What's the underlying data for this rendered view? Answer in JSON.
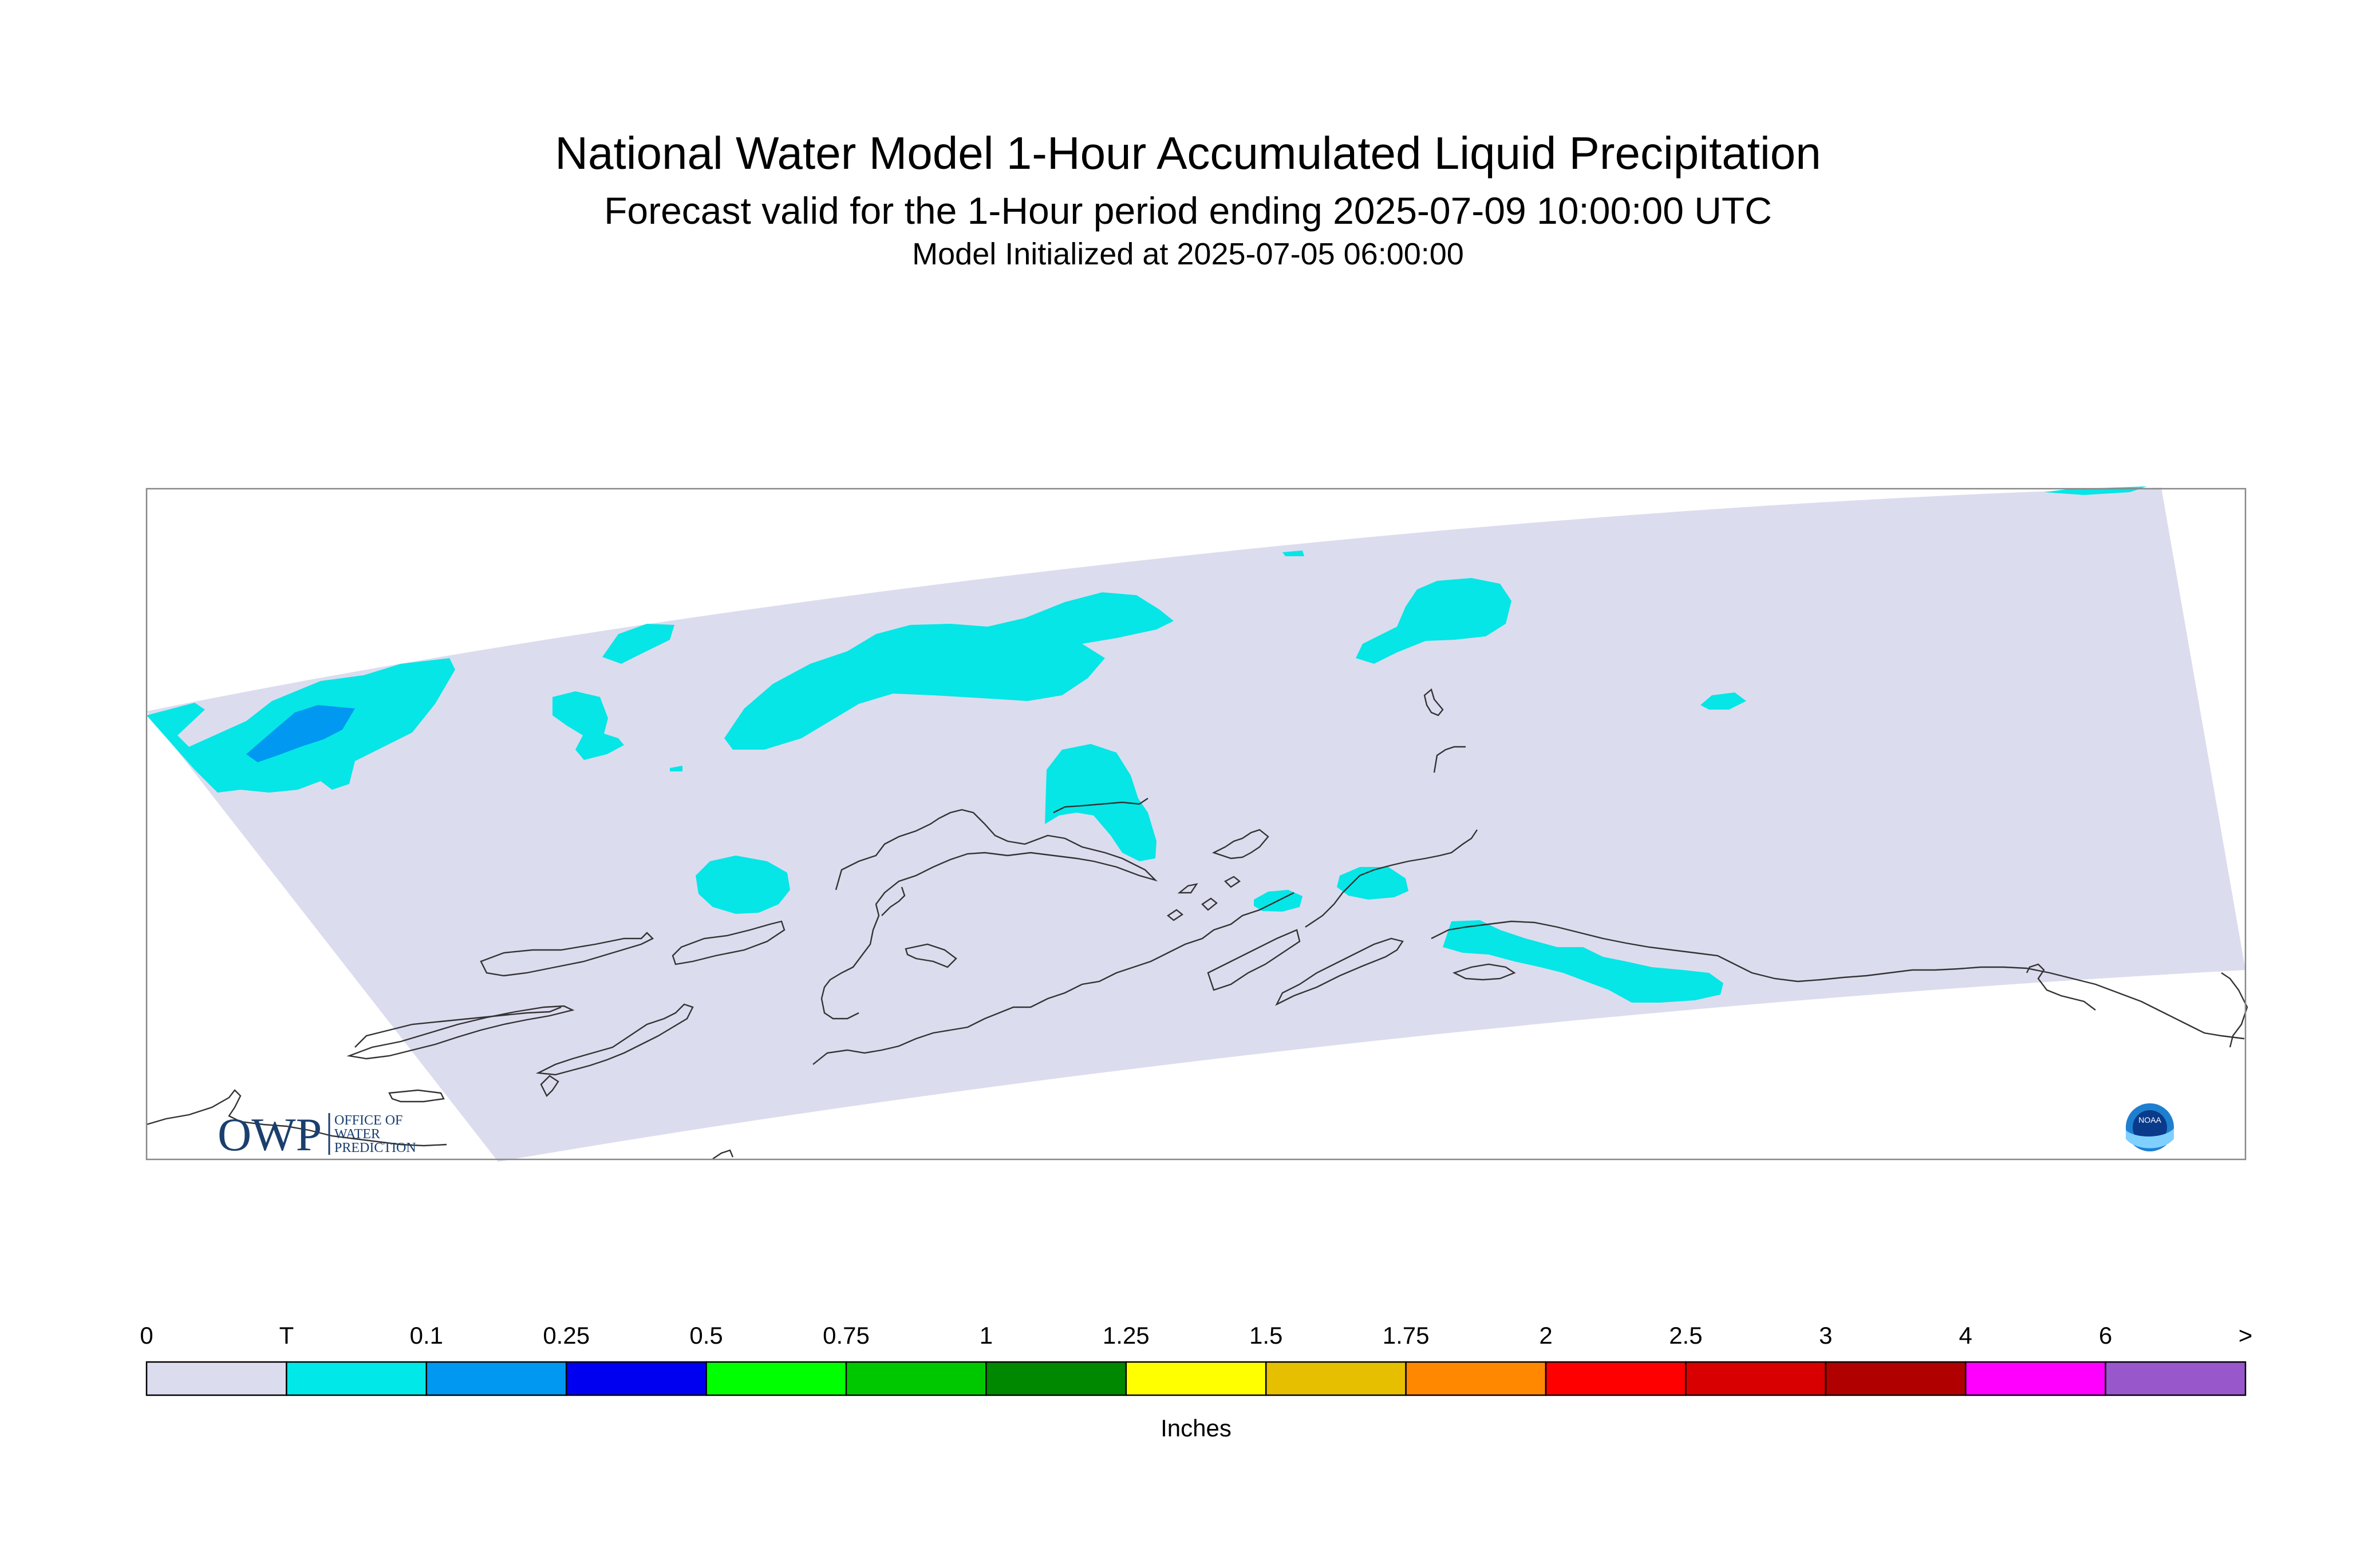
{
  "header": {
    "title": "National Water Model 1-Hour Accumulated Liquid Precipitation",
    "subtitle": "Forecast valid for the 1-Hour period ending 2025-07-09 10:00:00 UTC",
    "init": "Model Initialized at 2025-07-05 06:00:00"
  },
  "logos": {
    "owp_mark": "OWP",
    "owp_line1": "OFFICE OF",
    "owp_line2": "WATER",
    "owp_line3": "PREDICTION",
    "noaa_mark": "NOAA"
  },
  "legend": {
    "unit_label": "Inches",
    "labels": [
      "0",
      "T",
      "0.1",
      "0.25",
      "0.5",
      "0.75",
      "1",
      "1.25",
      "1.5",
      "1.75",
      "2",
      "2.5",
      "3",
      "4",
      "6",
      ">"
    ],
    "colors": [
      "#dcdcef",
      "#00e8e8",
      "#0098f0",
      "#0000f0",
      "#00ff00",
      "#00c800",
      "#008800",
      "#ffff00",
      "#e6c000",
      "#ff8800",
      "#ff0000",
      "#d80000",
      "#b00000",
      "#ff00ff",
      "#9858cc"
    ]
  },
  "map_colors": {
    "domain": "#dcdcef",
    "trace": "#06e6e6",
    "light": "#0098f0",
    "coast": "#333333"
  }
}
